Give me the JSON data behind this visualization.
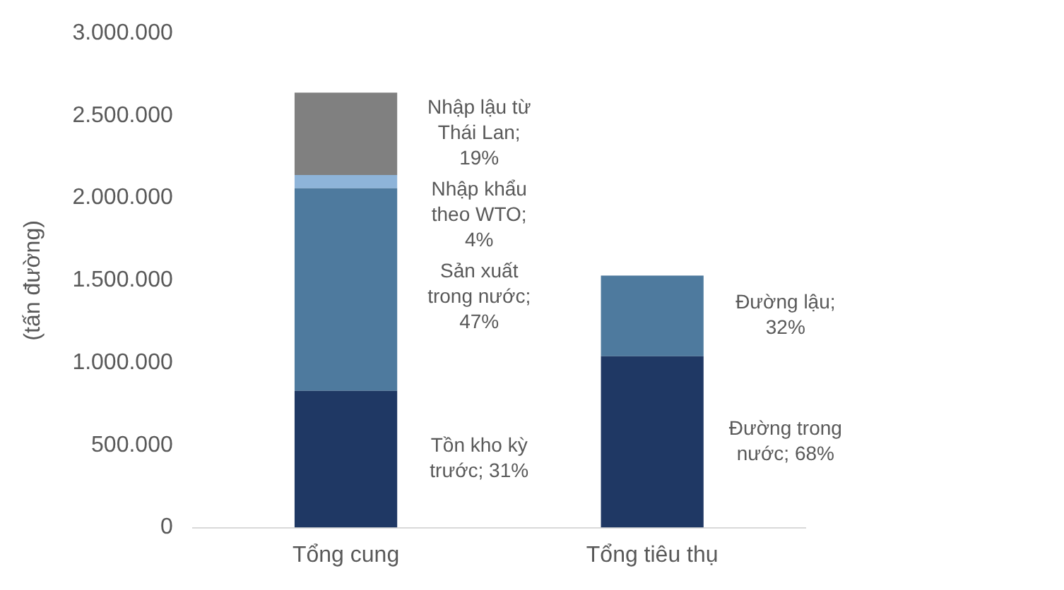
{
  "chart_data": {
    "type": "bar",
    "stacked": true,
    "ylabel": "(tấn đường)",
    "categories": [
      "Tổng cung",
      "Tổng tiêu thụ"
    ],
    "ylim": [
      0,
      3000000
    ],
    "yticks": [
      {
        "value": 0,
        "label": "0"
      },
      {
        "value": 500000,
        "label": "500.000"
      },
      {
        "value": 1000000,
        "label": "1.000.000"
      },
      {
        "value": 1500000,
        "label": "1.500.000"
      },
      {
        "value": 2000000,
        "label": "2.000.000"
      },
      {
        "value": 2500000,
        "label": "2.500.000"
      },
      {
        "value": 3000000,
        "label": "3.000.000"
      }
    ],
    "grid": false,
    "legend": false,
    "series": [
      {
        "color": "#1f3864",
        "values": [
          830000,
          1040000
        ]
      },
      {
        "color": "#4e7a9e",
        "values": [
          1230000,
          490000
        ]
      },
      {
        "color": "#8eb4d9",
        "values": [
          80000,
          null
        ]
      },
      {
        "color": "#808080",
        "values": [
          500000,
          null
        ]
      }
    ],
    "annotations": [
      "Tồn kho kỳ trước; 31%",
      "Sản xuất trong nước; 47%",
      "Nhập khẩu theo WTO; 4%",
      "Nhập lậu từ Thái Lan; 19%",
      "Đường trong nước; 68%",
      "Đường lậu; 32%"
    ]
  }
}
